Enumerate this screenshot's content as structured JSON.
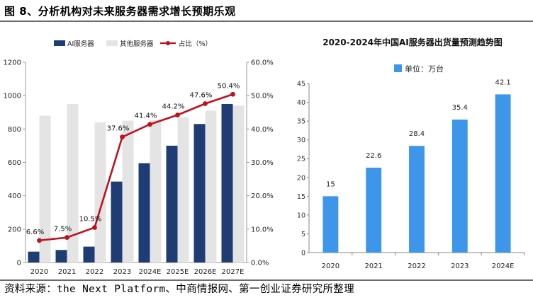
{
  "figure_title": "图 8、分析机构对未来服务器需求增长预期乐观",
  "source_note": "资料来源：the Next Platform、中商情报网、第一创业证券研究所整理",
  "colors": {
    "ai": "#1f3c74",
    "other": "#e4e4e4",
    "ratio": "#c0111f",
    "blue_bar": "#3d96ea"
  },
  "chart_data": [
    {
      "type": "bar",
      "title": "",
      "categories": [
        "2020",
        "2021",
        "2022",
        "2023",
        "2024E",
        "2025E",
        "2026E",
        "2027E"
      ],
      "series": [
        {
          "name": "AI服务器",
          "kind": "bar",
          "axis": "left",
          "values": [
            65,
            75,
            95,
            485,
            595,
            700,
            830,
            950
          ]
        },
        {
          "name": "其他服务器",
          "kind": "bar",
          "axis": "left",
          "values": [
            880,
            950,
            840,
            850,
            855,
            870,
            910,
            940
          ]
        },
        {
          "name": "占比（%）",
          "kind": "line",
          "axis": "right",
          "values": [
            6.6,
            7.5,
            10.5,
            37.6,
            41.4,
            44.2,
            47.6,
            50.4
          ],
          "labels": [
            "6.6%",
            "7.5%",
            "10.5%",
            "37.6%",
            "41.4%",
            "44.2%",
            "47.6%",
            "50.4%"
          ]
        }
      ],
      "ylim": [
        0,
        1200
      ],
      "yticks": [
        "0",
        "200",
        "400",
        "600",
        "800",
        "1000",
        "1200"
      ],
      "y2lim": [
        0,
        60
      ],
      "y2ticks": [
        "0.0%",
        "10.0%",
        "20.0%",
        "30.0%",
        "40.0%",
        "50.0%",
        "60.0%"
      ],
      "legend": "top"
    },
    {
      "type": "bar",
      "title": "2020-2024年中国AI服务器出货量预测趋势图",
      "categories": [
        "2020",
        "2021",
        "2022",
        "2023",
        "2024E"
      ],
      "series": [
        {
          "name": "单位：万台",
          "values": [
            15,
            22.6,
            28.4,
            35.4,
            42.1
          ],
          "labels": [
            "15",
            "22.6",
            "28.4",
            "35.4",
            "42.1"
          ]
        }
      ],
      "ylim": [
        0,
        45
      ],
      "yticks": [
        "0",
        "5",
        "10",
        "15",
        "20",
        "25",
        "30",
        "35",
        "40",
        "45"
      ],
      "legend": "top-left"
    }
  ]
}
